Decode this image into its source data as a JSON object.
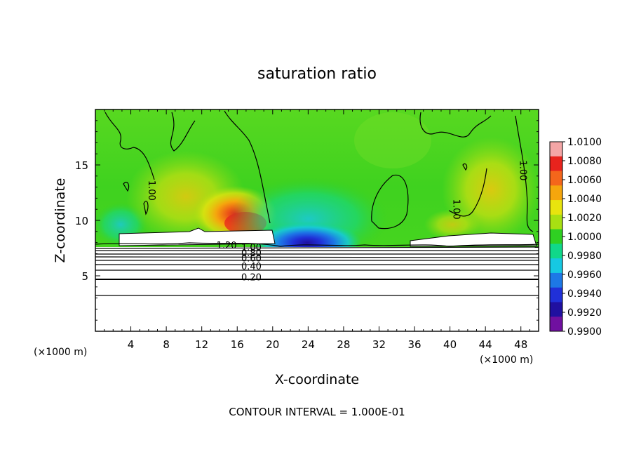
{
  "chart_data": {
    "type": "heatmap",
    "title": "saturation ratio",
    "xlabel": "X-coordinate",
    "ylabel": "Z-coordinate",
    "x_unit": "(×1000 m)",
    "y_unit": "(×1000 m)",
    "xlim": [
      0,
      50
    ],
    "ylim": [
      0,
      20
    ],
    "x_ticks": [
      4,
      8,
      12,
      16,
      20,
      24,
      28,
      32,
      36,
      40,
      44,
      48
    ],
    "y_ticks": [
      5,
      10,
      15
    ],
    "footer": "CONTOUR INTERVAL = 1.000E-01",
    "colorbar": {
      "min": 0.99,
      "max": 1.01,
      "labels": [
        "1.0100",
        "1.0080",
        "1.0060",
        "1.0040",
        "1.0020",
        "1.0000",
        "0.9980",
        "0.9960",
        "0.9940",
        "0.9920",
        "0.9900"
      ],
      "colors": [
        "#f4a6a6",
        "#e8231d",
        "#f4661b",
        "#f5a60d",
        "#e8e40e",
        "#a8e012",
        "#2fd022",
        "#10d88a",
        "#16c8e2",
        "#1d78e6",
        "#2030d8",
        "#2010a0",
        "#7010a0"
      ]
    },
    "contour_labels": [
      {
        "text": "1.20",
        "x": 14.8,
        "z": 7.8
      },
      {
        "text": "1.00",
        "x": 17.6,
        "z": 7.6
      },
      {
        "text": "0.80",
        "x": 17.6,
        "z": 7.1
      },
      {
        "text": "0.60",
        "x": 17.6,
        "z": 6.6
      },
      {
        "text": "0.40",
        "x": 17.6,
        "z": 5.9
      },
      {
        "text": "0.20",
        "x": 17.6,
        "z": 4.9
      },
      {
        "text": "1.00",
        "x": 6.4,
        "z": 12.7
      },
      {
        "text": "1.00",
        "x": 40.8,
        "z": 11.0
      },
      {
        "text": "1.00",
        "x": 48.3,
        "z": 14.5
      }
    ]
  }
}
